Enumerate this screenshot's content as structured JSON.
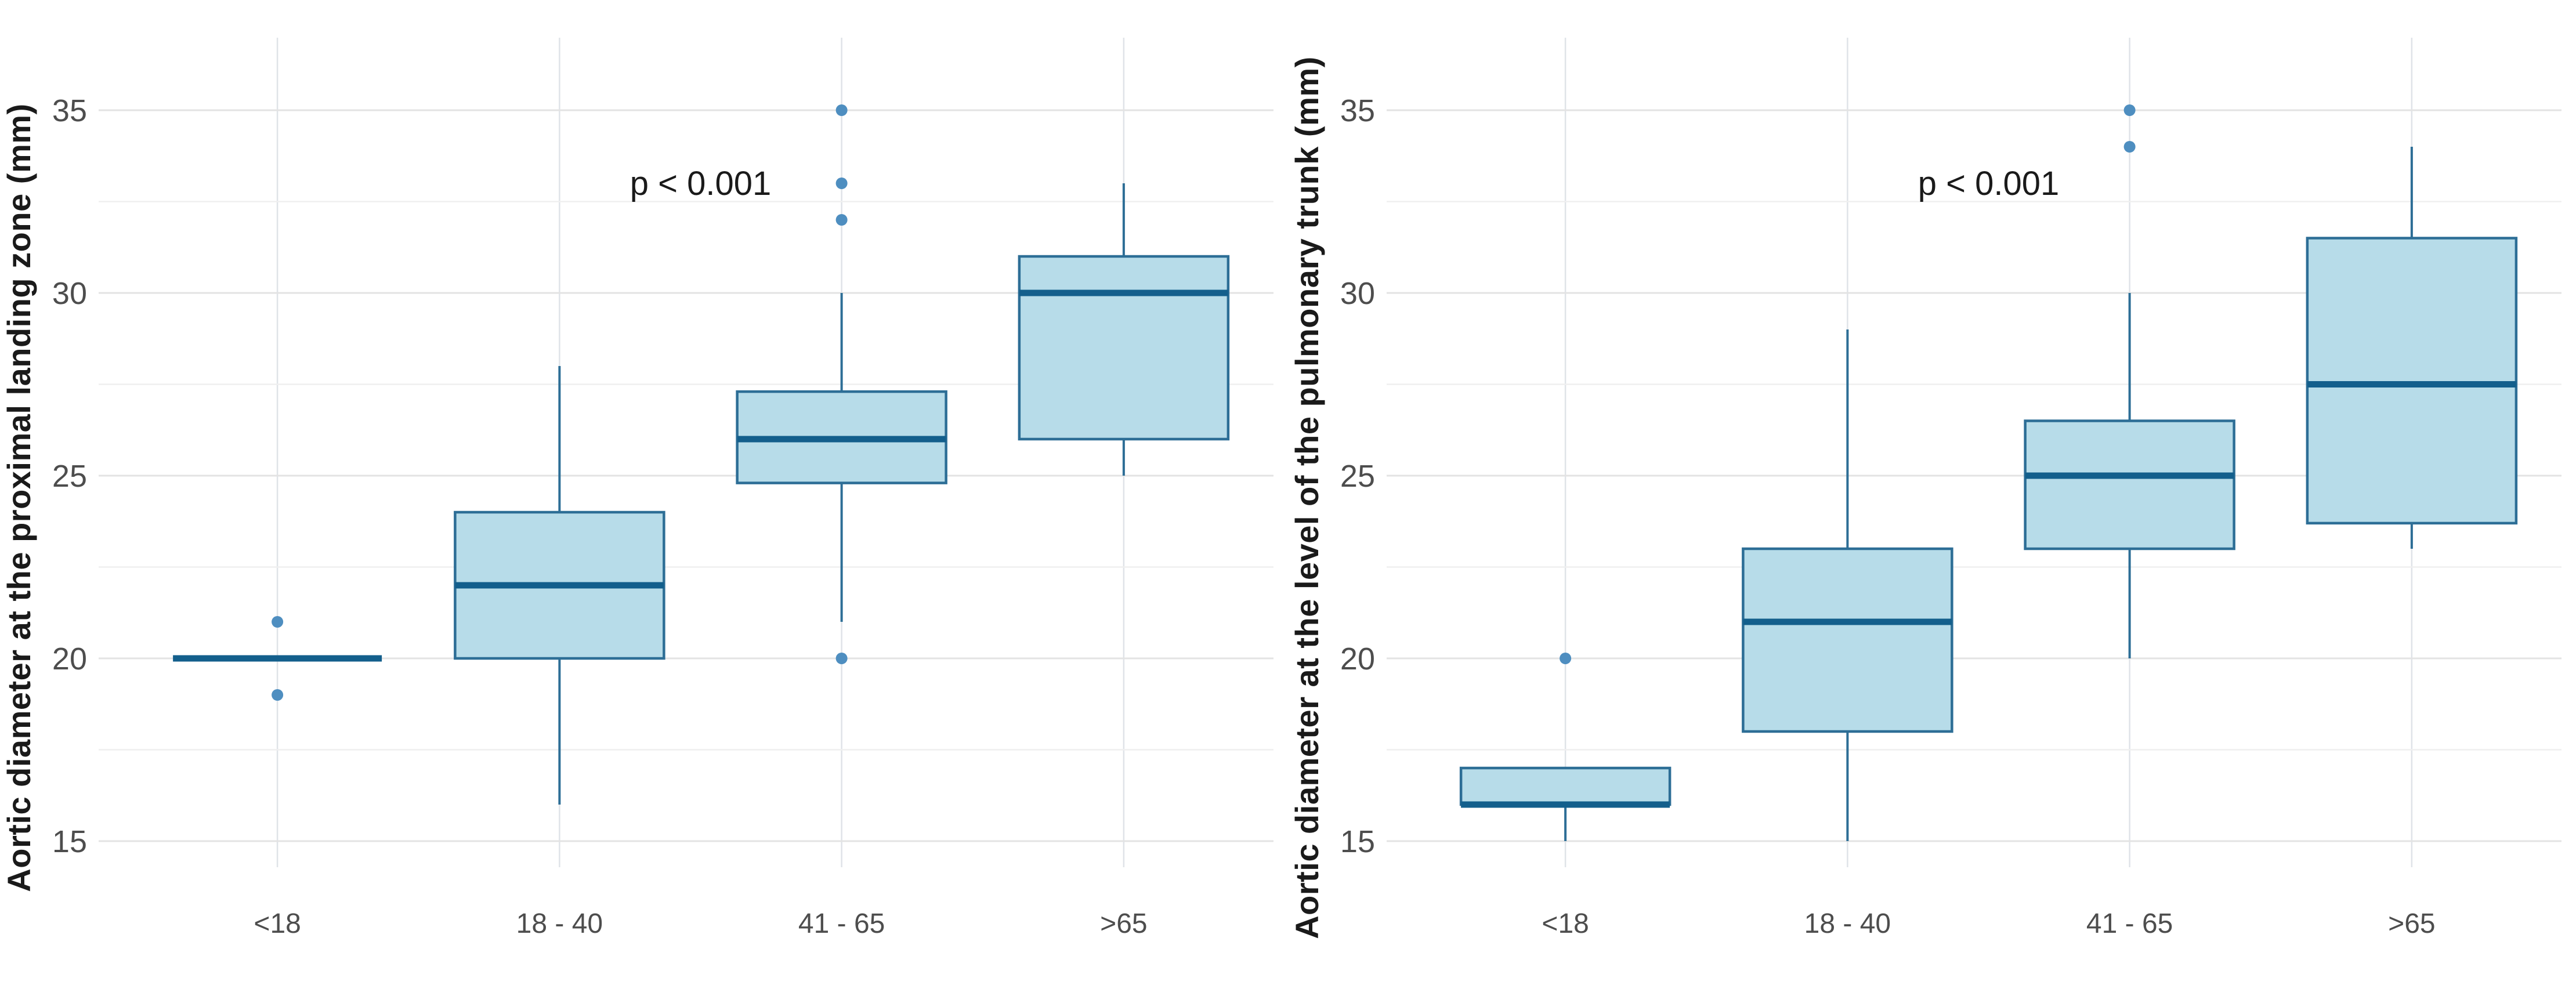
{
  "style": {
    "background": "#ffffff",
    "box_fill": "#b7dce9",
    "box_stroke": "#2d6e96",
    "median_stroke": "#135f8c",
    "outlier_fill": "#4e8ec0",
    "grid_major": "#e3e3e3",
    "grid_minor": "#efefef",
    "grid_vertical": "#dfe3e8",
    "tick_color": "#4d4d4d",
    "label_color": "#1a1a1a"
  },
  "chart_data": [
    {
      "type": "boxplot",
      "title": "",
      "ylabel": "Aortic diameter at the proximal landing zone (mm)",
      "categories": [
        "<18",
        "18 - 40",
        "41 - 65",
        ">65"
      ],
      "yticks": [
        15,
        20,
        25,
        30,
        35
      ],
      "ylim": [
        13.8,
        37.0
      ],
      "grid": "major and minor horizontal lines, vertical line per category, no axis lines",
      "legend": "none",
      "annotation": {
        "text": "p < 0.001",
        "x_frac": 0.5,
        "y_value": 33
      },
      "boxes": [
        {
          "category": "<18",
          "q1": 20,
          "median": 20,
          "q3": 20,
          "whisker_low": 20,
          "whisker_high": 20,
          "outliers": [
            21,
            19
          ]
        },
        {
          "category": "18 - 40",
          "q1": 20,
          "median": 22,
          "q3": 24,
          "whisker_low": 16,
          "whisker_high": 28,
          "outliers": []
        },
        {
          "category": "41 - 65",
          "q1": 24.8,
          "median": 26,
          "q3": 27.3,
          "whisker_low": 21,
          "whisker_high": 30,
          "outliers": [
            20,
            32,
            33,
            35
          ]
        },
        {
          "category": ">65",
          "q1": 26,
          "median": 30,
          "q3": 31,
          "whisker_low": 25,
          "whisker_high": 33,
          "outliers": []
        }
      ]
    },
    {
      "type": "boxplot",
      "title": "",
      "ylabel": "Aortic diameter at the level of the pulmonary trunk (mm)",
      "categories": [
        "<18",
        "18 - 40",
        "41 - 65",
        ">65"
      ],
      "yticks": [
        15,
        20,
        25,
        30,
        35
      ],
      "ylim": [
        13.8,
        37.0
      ],
      "grid": "major and minor horizontal lines, vertical line per category, no axis lines",
      "legend": "none",
      "annotation": {
        "text": "p < 0.001",
        "x_frac": 0.5,
        "y_value": 33
      },
      "boxes": [
        {
          "category": "<18",
          "q1": 16,
          "median": 16,
          "q3": 17,
          "whisker_low": 15,
          "whisker_high": 17,
          "outliers": [
            20
          ]
        },
        {
          "category": "18 - 40",
          "q1": 18,
          "median": 21,
          "q3": 23,
          "whisker_low": 15,
          "whisker_high": 29,
          "outliers": []
        },
        {
          "category": "41 - 65",
          "q1": 23,
          "median": 25,
          "q3": 26.5,
          "whisker_low": 20,
          "whisker_high": 30,
          "outliers": [
            34,
            35
          ]
        },
        {
          "category": ">65",
          "q1": 23.7,
          "median": 27.5,
          "q3": 31.5,
          "whisker_low": 23,
          "whisker_high": 34,
          "outliers": []
        }
      ]
    }
  ]
}
